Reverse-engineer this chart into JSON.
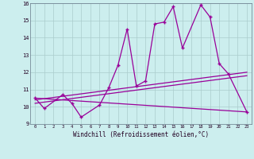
{
  "xlabel": "Windchill (Refroidissement éolien,°C)",
  "main_x": [
    0,
    1,
    3,
    4,
    5,
    7,
    8,
    9,
    10,
    11,
    12,
    13,
    14,
    15,
    16,
    18,
    19,
    20,
    21,
    23
  ],
  "main_y": [
    10.5,
    9.9,
    10.7,
    10.2,
    9.4,
    10.1,
    11.1,
    12.4,
    14.5,
    11.2,
    11.5,
    14.8,
    14.9,
    15.8,
    13.4,
    15.9,
    15.2,
    12.5,
    11.9,
    9.7
  ],
  "reg1_start": 10.4,
  "reg1_end": 12.0,
  "reg2_start": 10.2,
  "reg2_end": 11.8,
  "reg3_start": 10.5,
  "reg3_end": 9.7,
  "main_color": "#990099",
  "bg_color": "#cceeee",
  "grid_color": "#aacccc",
  "ylim_min": 9,
  "ylim_max": 16,
  "xlim_min": 0,
  "xlim_max": 23
}
